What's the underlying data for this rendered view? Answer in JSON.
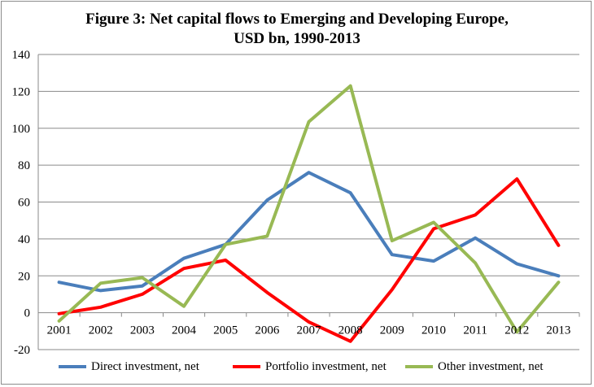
{
  "chart_data": {
    "type": "line",
    "title_lines": [
      "Figure 3: Net capital flows to Emerging  and Developing Europe,",
      "USD bn, 1990-2013"
    ],
    "xlabel": "",
    "ylabel": "",
    "categories": [
      "2001",
      "2002",
      "2003",
      "2004",
      "2005",
      "2006",
      "2007",
      "2008",
      "2009",
      "2010",
      "2011",
      "2012",
      "2013"
    ],
    "ylim": [
      -20,
      140
    ],
    "yticks": [
      -20,
      0,
      20,
      40,
      60,
      80,
      100,
      120,
      140
    ],
    "grid": true,
    "legend_position": "bottom",
    "series": [
      {
        "name": "Direct investment, net",
        "color": "#4a7ebb",
        "values": [
          16.5,
          12,
          14.5,
          29.5,
          37,
          61,
          76,
          65,
          31.5,
          28,
          40.5,
          26.5,
          20
        ]
      },
      {
        "name": "Portfolio investment, net",
        "color": "#ff0000",
        "values": [
          -0.5,
          3,
          10,
          24,
          28.5,
          11,
          -5,
          -15.5,
          12.5,
          45.5,
          53,
          72.5,
          36.5
        ]
      },
      {
        "name": "Other investment, net",
        "color": "#98b954",
        "values": [
          -4.5,
          16,
          19,
          3.5,
          37,
          41.5,
          103.5,
          123,
          39,
          49,
          27,
          -10.5,
          16.5
        ]
      }
    ]
  }
}
